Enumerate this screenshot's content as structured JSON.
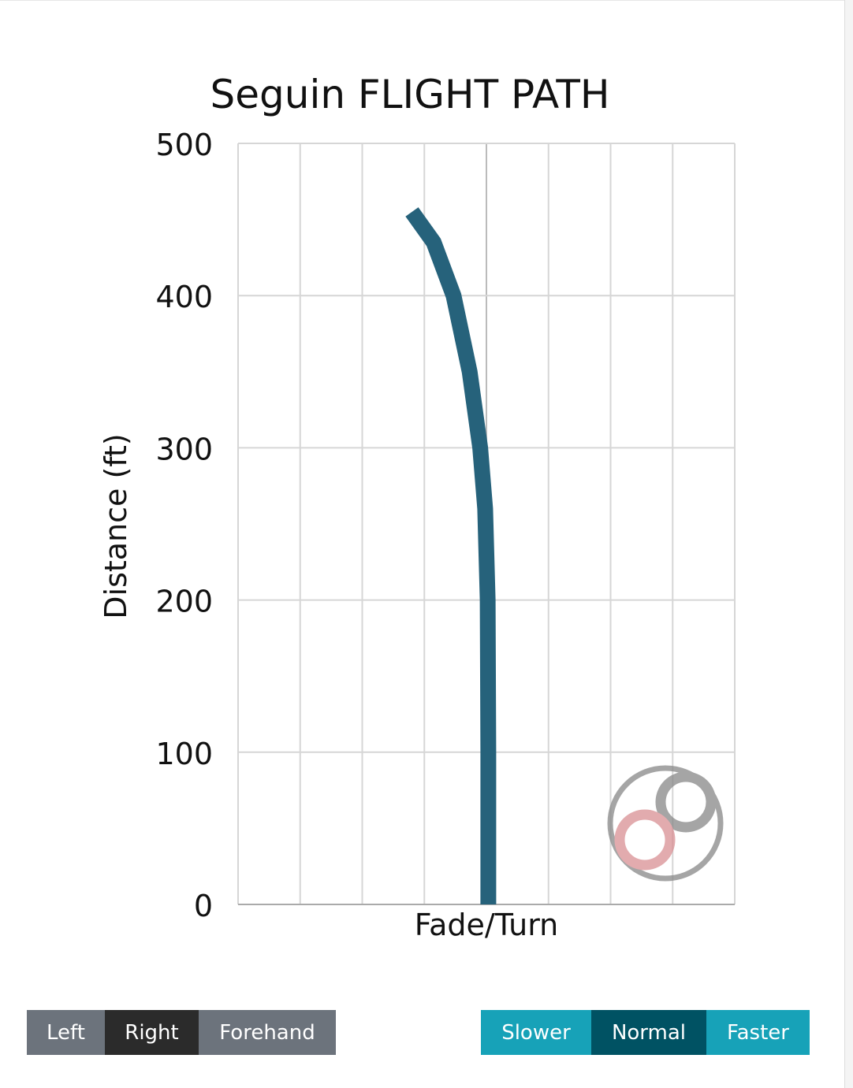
{
  "chart_data": {
    "type": "line",
    "title": "Seguin FLIGHT PATH",
    "xlabel": "Fade/Turn",
    "ylabel": "Distance (ft)",
    "ylim": [
      0,
      500
    ],
    "xlim": [
      -4,
      4
    ],
    "yticks": [
      "0",
      "100",
      "200",
      "300",
      "400",
      "500"
    ],
    "grid": true,
    "series": [
      {
        "color": "#26627b",
        "x": [
          0.03,
          0.03,
          0.02,
          -0.02,
          -0.1,
          -0.27,
          -0.53,
          -0.85,
          -1.2
        ],
        "y": [
          0,
          100,
          200,
          260,
          300,
          350,
          400,
          435,
          455
        ]
      }
    ]
  },
  "throw_buttons": [
    {
      "label": "Left",
      "active": false
    },
    {
      "label": "Right",
      "active": true
    },
    {
      "label": "Forehand",
      "active": false
    }
  ],
  "speed_buttons": [
    {
      "label": "Slower",
      "active": false
    },
    {
      "label": "Normal",
      "active": true
    },
    {
      "label": "Faster",
      "active": false
    }
  ],
  "colors": {
    "throw_inactive": "#6c737c",
    "throw_active": "#2b2b2b",
    "speed_inactive": "#17a2b8",
    "speed_active": "#005263"
  }
}
